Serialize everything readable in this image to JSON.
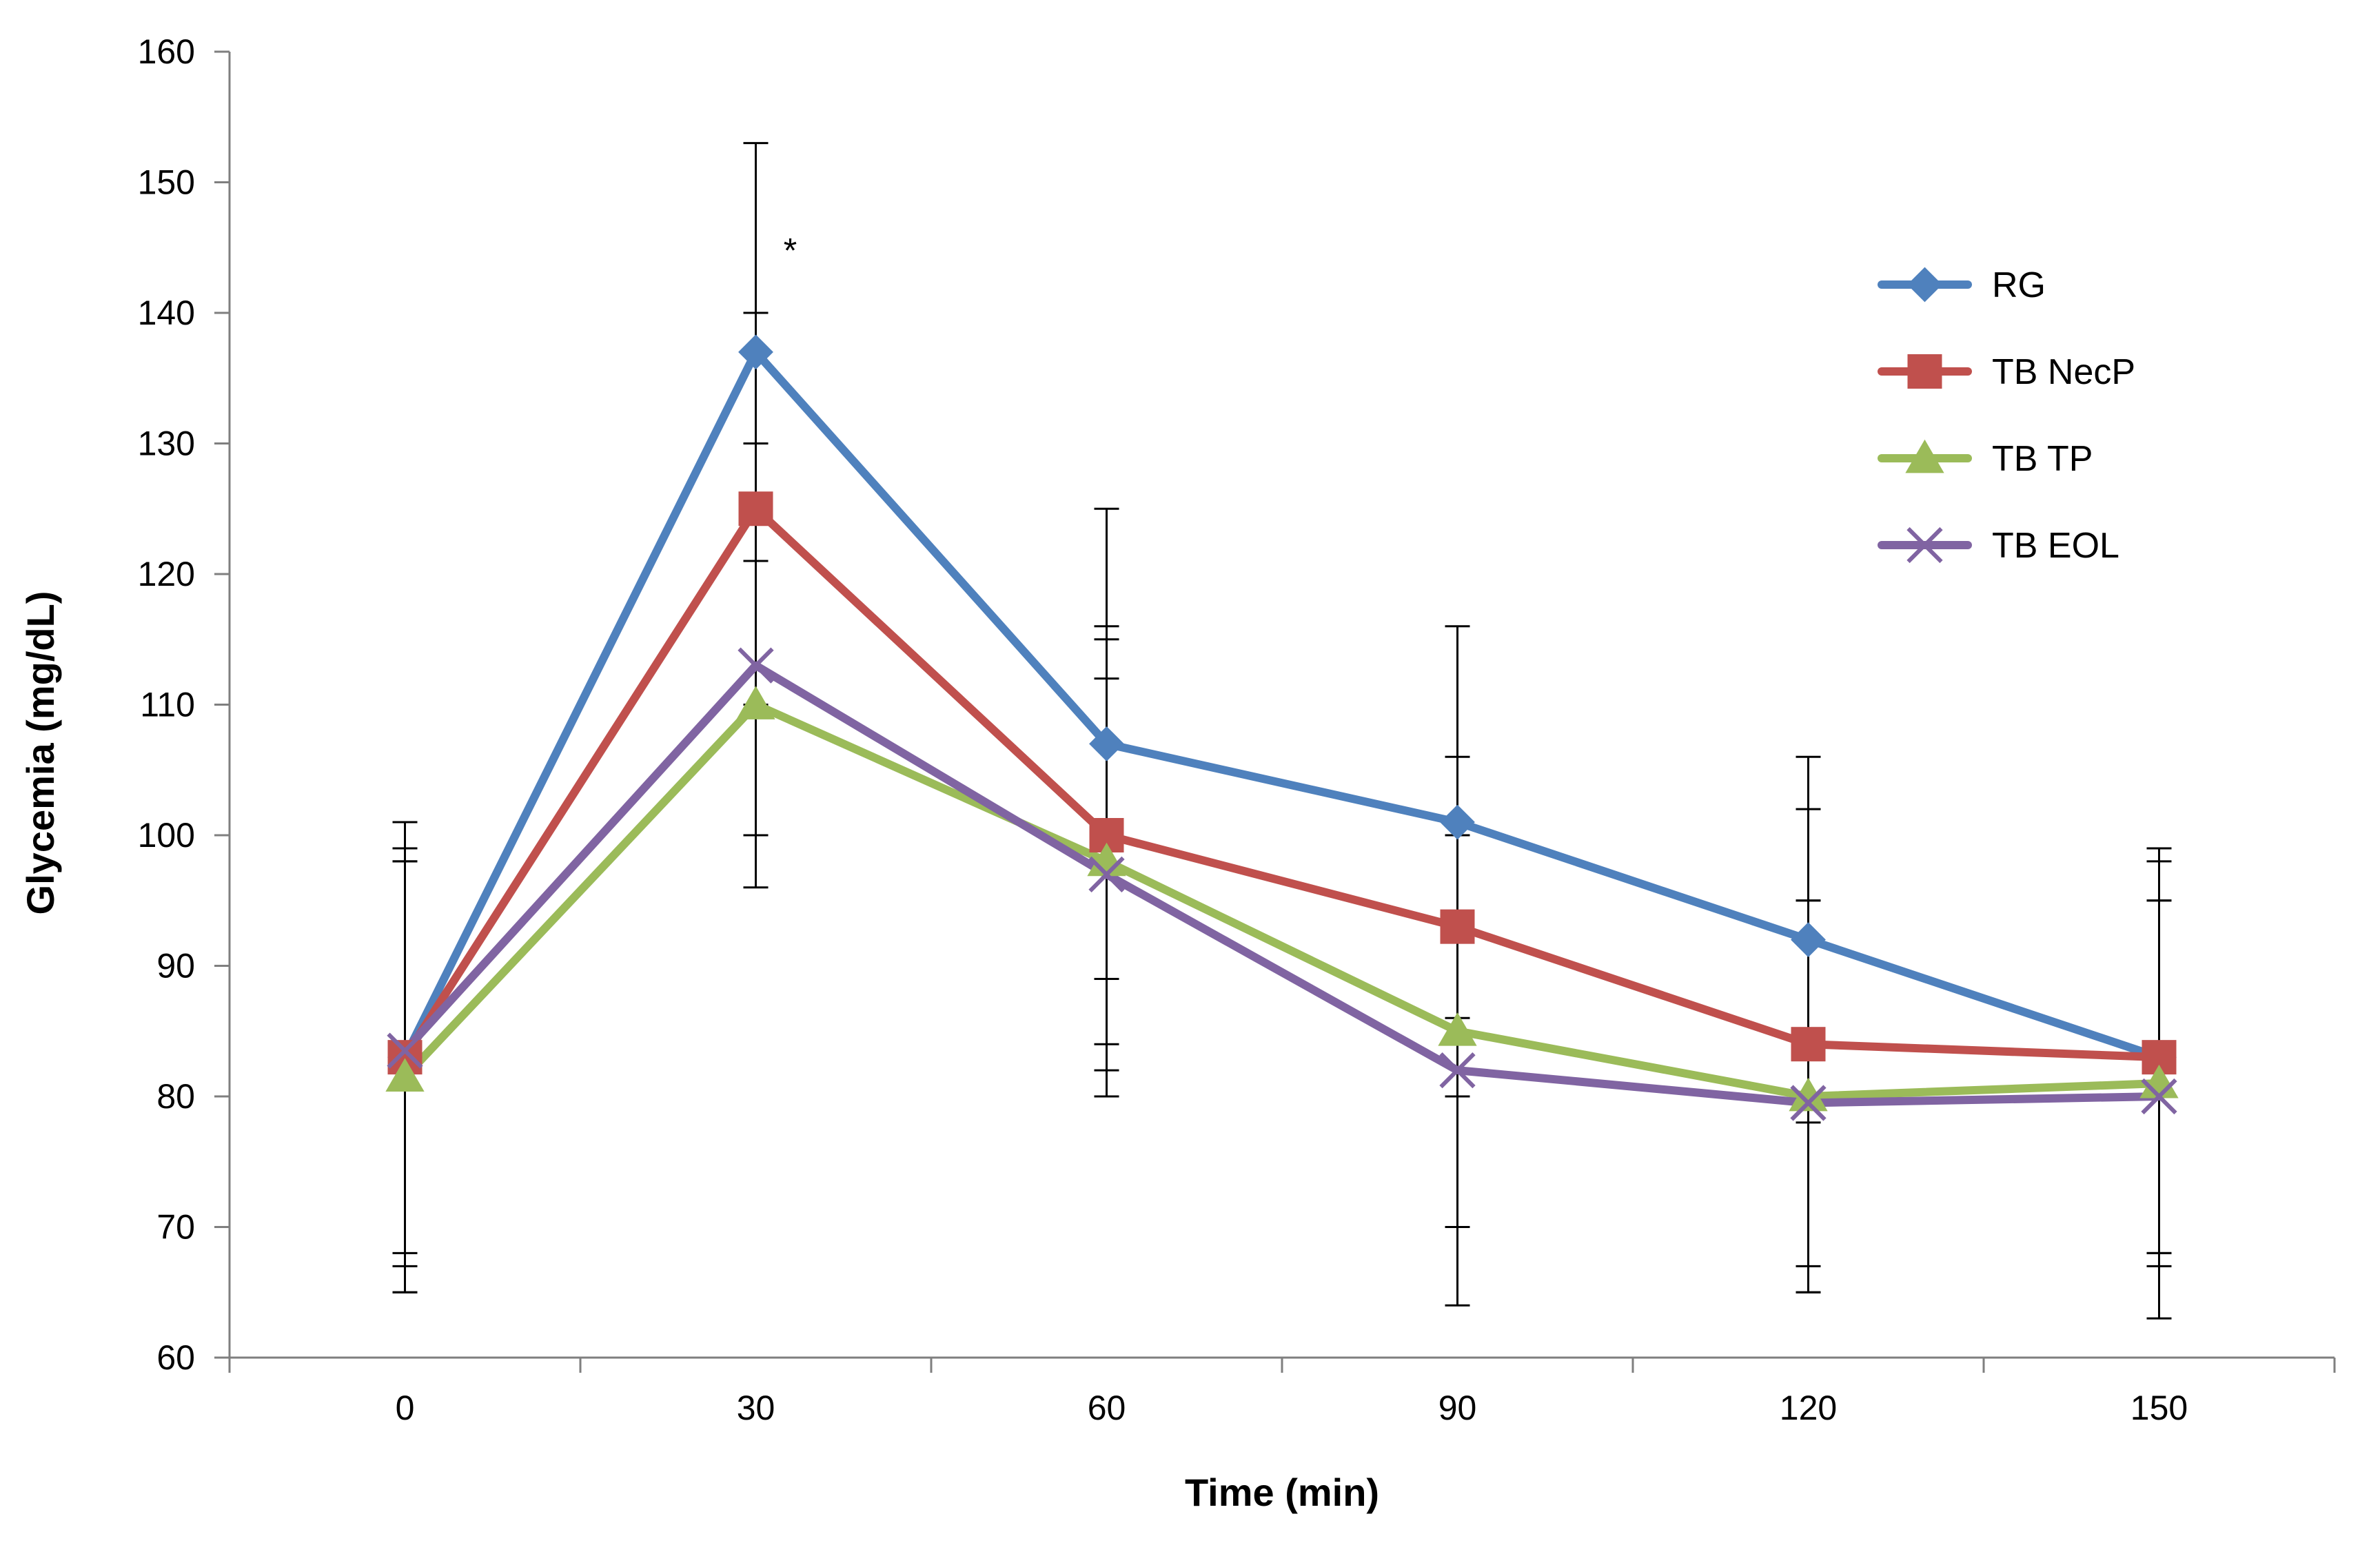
{
  "chart_data": {
    "type": "line",
    "title": "",
    "xlabel": "Time (min)",
    "ylabel": "Glycemia (mg/dL)",
    "x": [
      0,
      30,
      60,
      90,
      120,
      150
    ],
    "x_tick_labels": [
      "0",
      "30",
      "60",
      "90",
      "120",
      "150"
    ],
    "ylim": [
      60,
      160
    ],
    "y_ticks": [
      60,
      70,
      80,
      90,
      100,
      110,
      120,
      130,
      140,
      150,
      160
    ],
    "grid": false,
    "legend_position": "right",
    "series": [
      {
        "name": "RG",
        "marker": "diamond",
        "color": "#4F81BD",
        "values": [
          83,
          137,
          107,
          101,
          92,
          83
        ],
        "error_upper": [
          98,
          153,
          125,
          116,
          106,
          95
        ],
        "error_lower": [
          68,
          121,
          89,
          86,
          78,
          68
        ]
      },
      {
        "name": "TB NecP",
        "marker": "square",
        "color": "#C0504D",
        "values": [
          83,
          125,
          100,
          93,
          84,
          83
        ],
        "error_upper": [
          101,
          140,
          116,
          106,
          102,
          99
        ],
        "error_lower": [
          65,
          110,
          84,
          80,
          67,
          68
        ]
      },
      {
        "name": "TB TP",
        "marker": "triangle",
        "color": "#9BBB59",
        "values": [
          81.5,
          110,
          98,
          85,
          80,
          81
        ],
        "error_upper": [
          98,
          121,
          112,
          100,
          95,
          95
        ],
        "error_lower": [
          65,
          100,
          82,
          70,
          65,
          67
        ]
      },
      {
        "name": "TB EOL",
        "marker": "x",
        "color": "#8064A2",
        "values": [
          83.5,
          113,
          97,
          82,
          79.5,
          80
        ],
        "error_upper": [
          99,
          130,
          115,
          100,
          95,
          98
        ],
        "error_lower": [
          67,
          96,
          80,
          64,
          65,
          63
        ]
      }
    ],
    "annotations": [
      {
        "text": "*",
        "x": 30,
        "y": 146
      }
    ]
  }
}
